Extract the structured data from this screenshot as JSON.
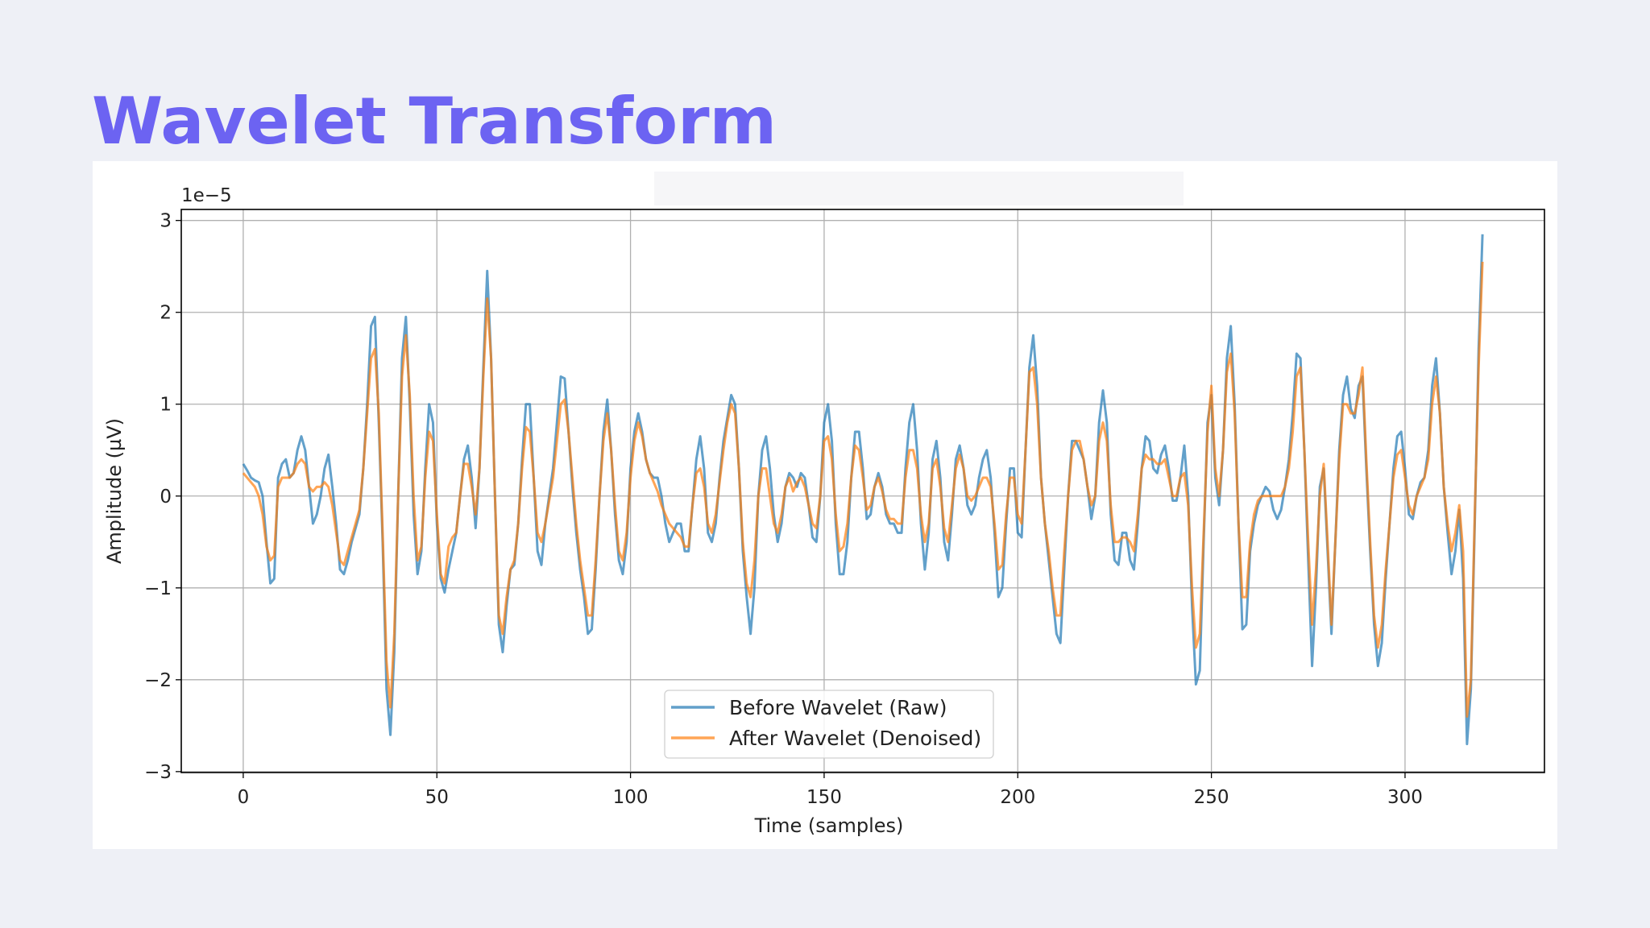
{
  "title": "Wavelet Transform",
  "chart_data": {
    "type": "line",
    "x_label": "Time (samples)",
    "y_label": "Amplitude (µV)",
    "offset_label": "1e−5",
    "xlim": [
      -16,
      336
    ],
    "ylim": [
      -3.01,
      3.12
    ],
    "xticks": [
      0,
      50,
      100,
      150,
      200,
      250,
      300
    ],
    "yticks": [
      {
        "value": -3,
        "label": "−3"
      },
      {
        "value": -2,
        "label": "−2"
      },
      {
        "value": -1,
        "label": "−1"
      },
      0,
      1,
      2,
      3
    ],
    "grid": true,
    "legend": "lower center",
    "x": [
      0,
      1,
      2,
      3,
      4,
      5,
      6,
      7,
      8,
      9,
      10,
      11,
      12,
      13,
      14,
      15,
      16,
      17,
      18,
      19,
      20,
      21,
      22,
      23,
      24,
      25,
      26,
      27,
      28,
      29,
      30,
      31,
      32,
      33,
      34,
      35,
      36,
      37,
      38,
      39,
      40,
      41,
      42,
      43,
      44,
      45,
      46,
      47,
      48,
      49,
      50,
      51,
      52,
      53,
      54,
      55,
      56,
      57,
      58,
      59,
      60,
      61,
      62,
      63,
      64,
      65,
      66,
      67,
      68,
      69,
      70,
      71,
      72,
      73,
      74,
      75,
      76,
      77,
      78,
      79,
      80,
      81,
      82,
      83,
      84,
      85,
      86,
      87,
      88,
      89,
      90,
      91,
      92,
      93,
      94,
      95,
      96,
      97,
      98,
      99,
      100,
      101,
      102,
      103,
      104,
      105,
      106,
      107,
      108,
      109,
      110,
      111,
      112,
      113,
      114,
      115,
      116,
      117,
      118,
      119,
      120,
      121,
      122,
      123,
      124,
      125,
      126,
      127,
      128,
      129,
      130,
      131,
      132,
      133,
      134,
      135,
      136,
      137,
      138,
      139,
      140,
      141,
      142,
      143,
      144,
      145,
      146,
      147,
      148,
      149,
      150,
      151,
      152,
      153,
      154,
      155,
      156,
      157,
      158,
      159,
      160,
      161,
      162,
      163,
      164,
      165,
      166,
      167,
      168,
      169,
      170,
      171,
      172,
      173,
      174,
      175,
      176,
      177,
      178,
      179,
      180,
      181,
      182,
      183,
      184,
      185,
      186,
      187,
      188,
      189,
      190,
      191,
      192,
      193,
      194,
      195,
      196,
      197,
      198,
      199,
      200,
      201,
      202,
      203,
      204,
      205,
      206,
      207,
      208,
      209,
      210,
      211,
      212,
      213,
      214,
      215,
      216,
      217,
      218,
      219,
      220,
      221,
      222,
      223,
      224,
      225,
      226,
      227,
      228,
      229,
      230,
      231,
      232,
      233,
      234,
      235,
      236,
      237,
      238,
      239,
      240,
      241,
      242,
      243,
      244,
      245,
      246,
      247,
      248,
      249,
      250,
      251,
      252,
      253,
      254,
      255,
      256,
      257,
      258,
      259,
      260,
      261,
      262,
      263,
      264,
      265,
      266,
      267,
      268,
      269,
      270,
      271,
      272,
      273,
      274,
      275,
      276,
      277,
      278,
      279,
      280,
      281,
      282,
      283,
      284,
      285,
      286,
      287,
      288,
      289,
      290,
      291,
      292,
      293,
      294,
      295,
      296,
      297,
      298,
      299,
      300,
      301,
      302,
      303,
      304,
      305,
      306,
      307,
      308,
      309,
      310,
      311,
      312,
      313,
      314,
      315,
      316,
      317,
      318,
      319,
      320
    ],
    "series": [
      {
        "name": "Before Wavelet (Raw)",
        "color": "#1f77b4",
        "values": [
          0.35,
          0.28,
          0.2,
          0.17,
          0.15,
          0.0,
          -0.5,
          -0.95,
          -0.9,
          0.2,
          0.35,
          0.4,
          0.2,
          0.25,
          0.5,
          0.65,
          0.5,
          0.1,
          -0.3,
          -0.2,
          0.0,
          0.3,
          0.45,
          0.1,
          -0.3,
          -0.8,
          -0.85,
          -0.7,
          -0.5,
          -0.35,
          -0.2,
          0.3,
          1.0,
          1.85,
          1.95,
          0.8,
          -0.5,
          -2.1,
          -2.6,
          -1.7,
          0.0,
          1.5,
          1.95,
          1.0,
          -0.2,
          -0.85,
          -0.6,
          0.3,
          1.0,
          0.8,
          -0.3,
          -0.9,
          -1.05,
          -0.8,
          -0.6,
          -0.4,
          0.0,
          0.4,
          0.55,
          0.2,
          -0.35,
          0.3,
          1.4,
          2.45,
          1.5,
          0.0,
          -1.4,
          -1.7,
          -1.2,
          -0.8,
          -0.75,
          -0.3,
          0.4,
          1.0,
          1.0,
          0.2,
          -0.6,
          -0.75,
          -0.3,
          0.0,
          0.3,
          0.8,
          1.3,
          1.28,
          0.7,
          0.1,
          -0.4,
          -0.8,
          -1.1,
          -1.5,
          -1.45,
          -0.8,
          0.0,
          0.7,
          1.05,
          0.5,
          -0.2,
          -0.7,
          -0.85,
          -0.5,
          0.3,
          0.7,
          0.9,
          0.7,
          0.4,
          0.25,
          0.2,
          0.2,
          0.0,
          -0.3,
          -0.5,
          -0.4,
          -0.3,
          -0.3,
          -0.6,
          -0.6,
          -0.1,
          0.4,
          0.65,
          0.3,
          -0.4,
          -0.5,
          -0.3,
          0.2,
          0.6,
          0.85,
          1.1,
          1.0,
          0.3,
          -0.6,
          -1.1,
          -1.5,
          -1.0,
          0.0,
          0.5,
          0.65,
          0.3,
          -0.2,
          -0.5,
          -0.3,
          0.1,
          0.25,
          0.2,
          0.1,
          0.25,
          0.2,
          -0.1,
          -0.45,
          -0.5,
          0.0,
          0.8,
          1.0,
          0.6,
          -0.3,
          -0.85,
          -0.85,
          -0.5,
          0.2,
          0.7,
          0.7,
          0.3,
          -0.25,
          -0.2,
          0.1,
          0.25,
          0.1,
          -0.2,
          -0.3,
          -0.3,
          -0.4,
          -0.4,
          0.3,
          0.8,
          1.0,
          0.5,
          -0.3,
          -0.8,
          -0.4,
          0.4,
          0.6,
          0.2,
          -0.5,
          -0.7,
          -0.2,
          0.4,
          0.55,
          0.3,
          -0.1,
          -0.2,
          -0.1,
          0.2,
          0.4,
          0.5,
          0.2,
          -0.4,
          -1.1,
          -1.0,
          -0.3,
          0.3,
          0.3,
          -0.4,
          -0.45,
          0.5,
          1.4,
          1.75,
          1.2,
          0.2,
          -0.3,
          -0.7,
          -1.1,
          -1.5,
          -1.6,
          -0.8,
          0.0,
          0.6,
          0.6,
          0.5,
          0.4,
          0.1,
          -0.25,
          0.0,
          0.8,
          1.15,
          0.8,
          -0.2,
          -0.7,
          -0.75,
          -0.4,
          -0.4,
          -0.7,
          -0.8,
          -0.3,
          0.3,
          0.65,
          0.6,
          0.3,
          0.25,
          0.45,
          0.55,
          0.3,
          -0.05,
          -0.05,
          0.2,
          0.55,
          0.0,
          -1.2,
          -2.05,
          -1.9,
          -0.5,
          0.8,
          1.1,
          0.2,
          -0.1,
          0.5,
          1.5,
          1.85,
          1.0,
          -0.3,
          -1.45,
          -1.4,
          -0.6,
          -0.3,
          -0.1,
          0.0,
          0.1,
          0.05,
          -0.15,
          -0.25,
          -0.15,
          0.1,
          0.4,
          0.9,
          1.55,
          1.5,
          0.5,
          -0.7,
          -1.85,
          -1.0,
          0.1,
          0.3,
          -0.6,
          -1.5,
          -0.5,
          0.5,
          1.1,
          1.3,
          0.95,
          0.85,
          1.2,
          1.3,
          0.3,
          -0.6,
          -1.4,
          -1.85,
          -1.6,
          -0.9,
          -0.3,
          0.3,
          0.65,
          0.7,
          0.3,
          -0.2,
          -0.25,
          0.0,
          0.15,
          0.2,
          0.5,
          1.2,
          1.5,
          0.9,
          0.1,
          -0.4,
          -0.85,
          -0.6,
          -0.15,
          -0.9,
          -2.7,
          -2.1,
          -0.3,
          1.6,
          2.85
        ]
      },
      {
        "name": "After Wavelet (Denoised)",
        "color": "#ff7f0e",
        "values": [
          0.25,
          0.2,
          0.15,
          0.1,
          0.0,
          -0.2,
          -0.55,
          -0.7,
          -0.65,
          0.1,
          0.2,
          0.2,
          0.2,
          0.25,
          0.35,
          0.4,
          0.35,
          0.1,
          0.05,
          0.1,
          0.1,
          0.15,
          0.1,
          -0.1,
          -0.4,
          -0.7,
          -0.75,
          -0.6,
          -0.45,
          -0.3,
          -0.15,
          0.3,
          0.9,
          1.5,
          1.6,
          0.9,
          -0.4,
          -1.8,
          -2.3,
          -1.5,
          0.0,
          1.3,
          1.75,
          1.1,
          0.0,
          -0.7,
          -0.55,
          0.2,
          0.7,
          0.6,
          -0.2,
          -0.85,
          -0.95,
          -0.55,
          -0.45,
          -0.4,
          0.0,
          0.35,
          0.35,
          0.1,
          -0.2,
          0.3,
          1.3,
          2.15,
          1.5,
          0.0,
          -1.3,
          -1.5,
          -1.1,
          -0.8,
          -0.7,
          -0.3,
          0.3,
          0.75,
          0.7,
          0.2,
          -0.4,
          -0.5,
          -0.3,
          -0.05,
          0.2,
          0.6,
          1.0,
          1.05,
          0.7,
          0.2,
          -0.3,
          -0.7,
          -1.0,
          -1.3,
          -1.3,
          -0.7,
          0.0,
          0.6,
          0.9,
          0.5,
          -0.1,
          -0.6,
          -0.7,
          -0.4,
          0.2,
          0.6,
          0.8,
          0.65,
          0.4,
          0.25,
          0.15,
          0.05,
          -0.1,
          -0.2,
          -0.3,
          -0.35,
          -0.4,
          -0.45,
          -0.55,
          -0.55,
          -0.1,
          0.25,
          0.3,
          0.1,
          -0.3,
          -0.4,
          -0.2,
          0.15,
          0.5,
          0.8,
          1.0,
          0.9,
          0.3,
          -0.5,
          -0.95,
          -1.1,
          -0.7,
          0.0,
          0.3,
          0.3,
          0.0,
          -0.3,
          -0.4,
          -0.2,
          0.1,
          0.2,
          0.05,
          0.15,
          0.2,
          0.1,
          -0.1,
          -0.3,
          -0.35,
          0.0,
          0.6,
          0.65,
          0.4,
          -0.2,
          -0.6,
          -0.55,
          -0.3,
          0.2,
          0.55,
          0.5,
          0.2,
          -0.15,
          -0.1,
          0.1,
          0.2,
          0.05,
          -0.15,
          -0.25,
          -0.25,
          -0.3,
          -0.3,
          0.2,
          0.5,
          0.5,
          0.3,
          -0.2,
          -0.5,
          -0.3,
          0.3,
          0.4,
          0.1,
          -0.35,
          -0.5,
          -0.1,
          0.3,
          0.45,
          0.3,
          0.0,
          -0.05,
          0.0,
          0.1,
          0.2,
          0.2,
          0.1,
          -0.3,
          -0.8,
          -0.75,
          -0.2,
          0.2,
          0.2,
          -0.2,
          -0.3,
          0.5,
          1.35,
          1.4,
          1.0,
          0.2,
          -0.3,
          -0.6,
          -1.0,
          -1.3,
          -1.3,
          -0.6,
          0.0,
          0.5,
          0.6,
          0.6,
          0.4,
          0.1,
          -0.1,
          0.0,
          0.6,
          0.8,
          0.6,
          -0.1,
          -0.5,
          -0.5,
          -0.45,
          -0.45,
          -0.5,
          -0.6,
          -0.2,
          0.3,
          0.45,
          0.4,
          0.4,
          0.35,
          0.35,
          0.4,
          0.2,
          0.0,
          0.0,
          0.2,
          0.25,
          -0.1,
          -1.0,
          -1.65,
          -1.5,
          -0.4,
          0.7,
          1.2,
          0.3,
          0.0,
          0.5,
          1.35,
          1.55,
          0.9,
          -0.3,
          -1.1,
          -1.1,
          -0.5,
          -0.2,
          -0.05,
          0.0,
          0.0,
          0.0,
          0.0,
          0.0,
          0.0,
          0.1,
          0.3,
          0.7,
          1.3,
          1.4,
          0.5,
          -0.5,
          -1.4,
          -0.8,
          0.0,
          0.35,
          -0.5,
          -1.4,
          -0.5,
          0.4,
          1.0,
          1.0,
          0.9,
          0.9,
          1.1,
          1.4,
          0.4,
          -0.5,
          -1.3,
          -1.65,
          -1.4,
          -0.8,
          -0.3,
          0.2,
          0.45,
          0.5,
          0.2,
          -0.1,
          -0.2,
          0.0,
          0.1,
          0.2,
          0.4,
          1.0,
          1.3,
          0.9,
          0.1,
          -0.3,
          -0.6,
          -0.4,
          -0.1,
          -0.6,
          -2.4,
          -2.0,
          -0.2,
          1.4,
          2.55
        ]
      }
    ]
  }
}
